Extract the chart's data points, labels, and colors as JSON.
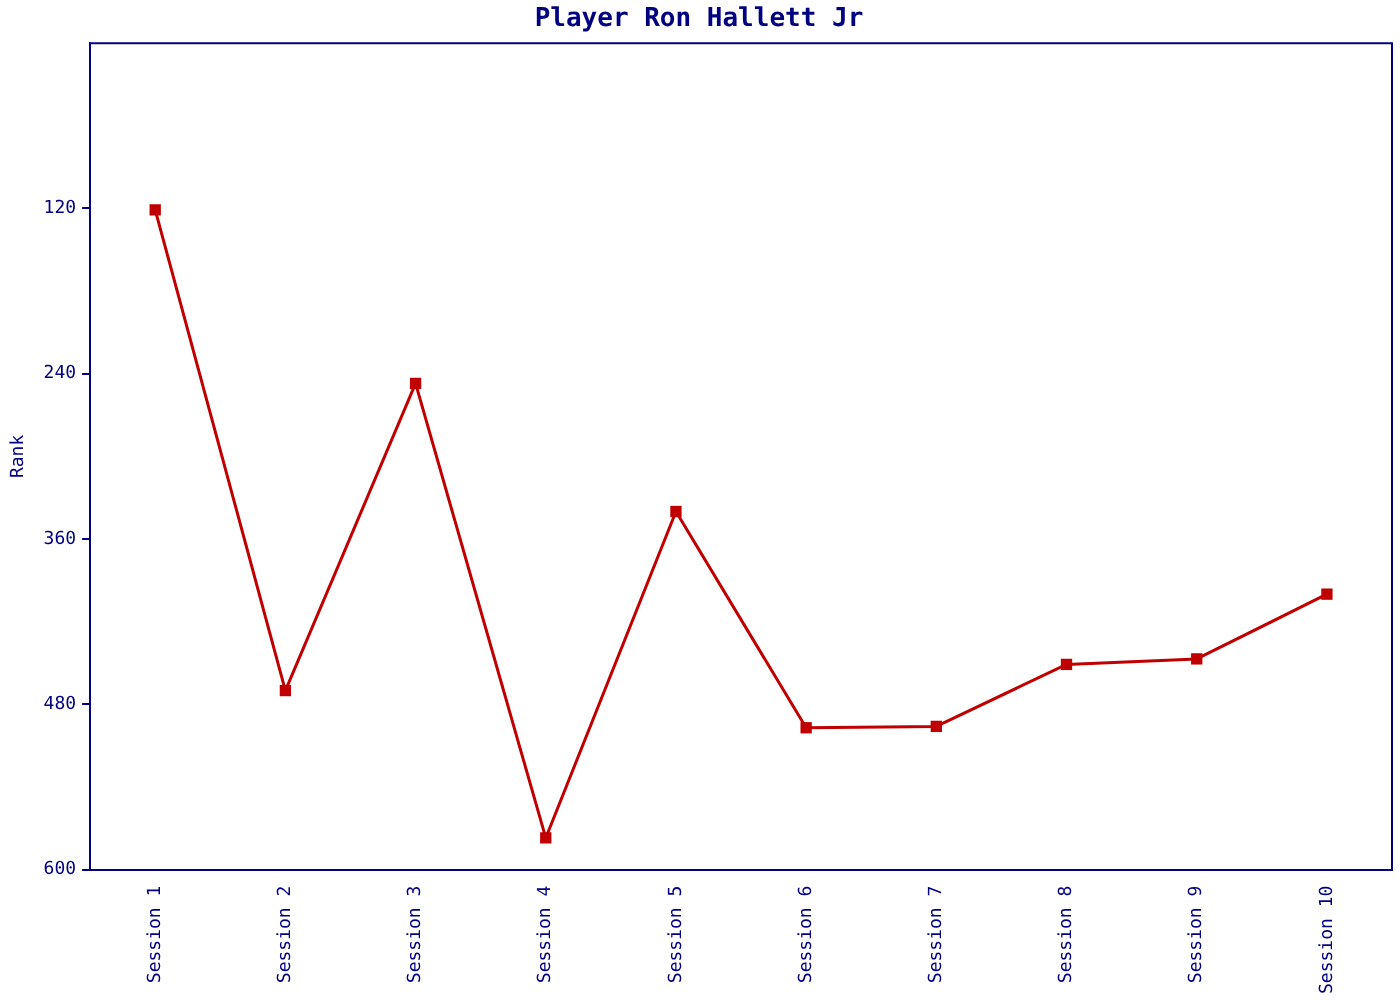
{
  "chart_data": {
    "type": "line",
    "title": "Player Ron Hallett Jr",
    "ylabel": "Rank",
    "categories": [
      "Session 1",
      "Session 2",
      "Session 3",
      "Session 4",
      "Session 5",
      "Session 6",
      "Session 7",
      "Session 8",
      "Session 9",
      "Session 10"
    ],
    "series": [
      {
        "color": "#c00000",
        "values": [
          121,
          470,
          247,
          577,
          340,
          497,
          496,
          451,
          447,
          400
        ]
      }
    ],
    "ylim": [
      600,
      0
    ],
    "yticks": [
      120,
      240,
      360,
      480,
      600
    ],
    "grid": false,
    "legend": false,
    "marker": "square",
    "line_style": "solid"
  }
}
